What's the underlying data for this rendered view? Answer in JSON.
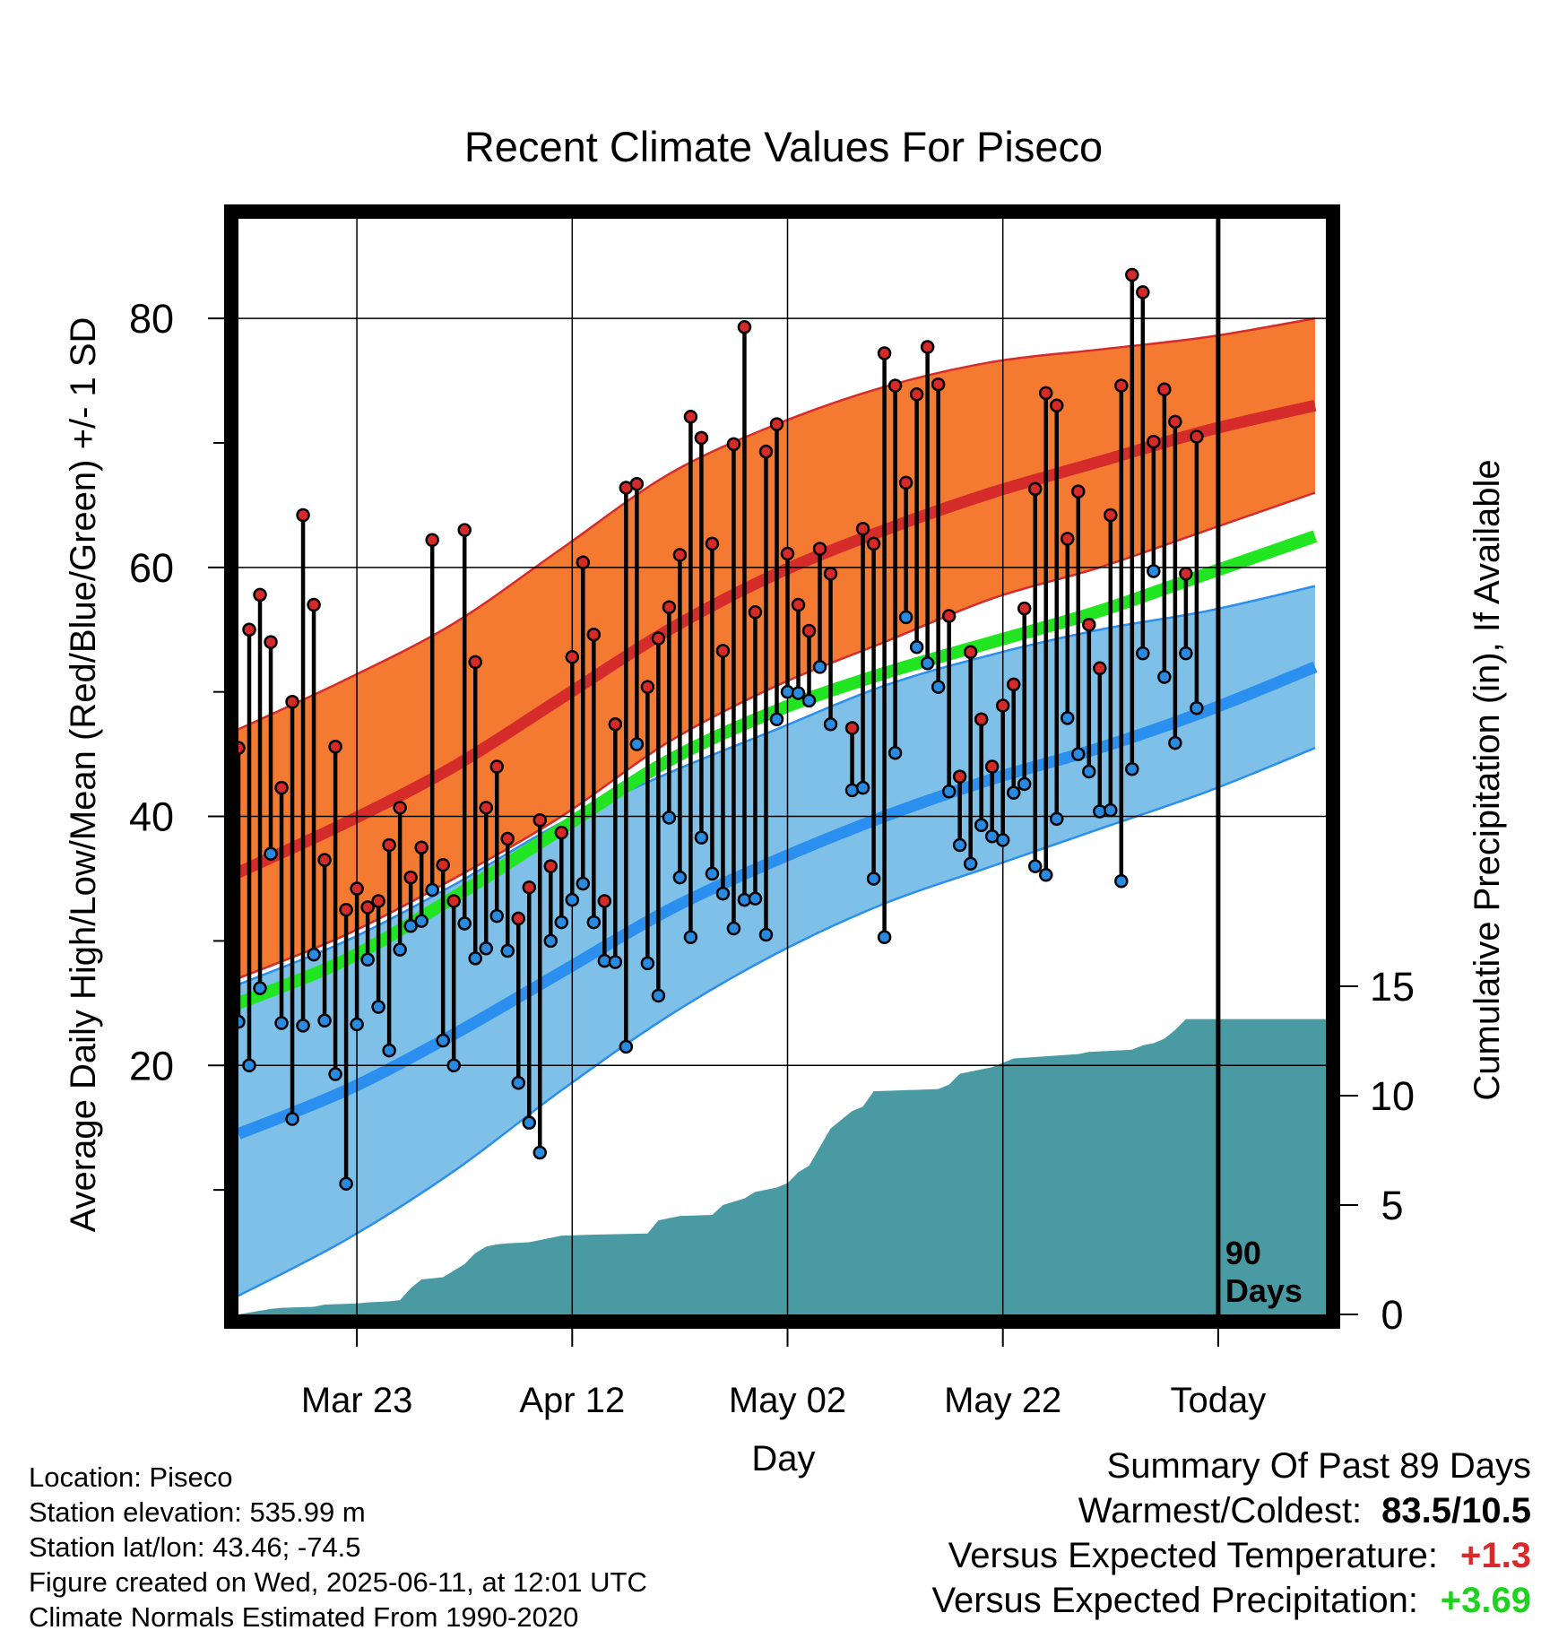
{
  "chart_data": {
    "type": "line",
    "title": "Recent Climate Values For Piseco",
    "xlabel": "Day",
    "ylabel": "Average Daily High/Low/Mean (Red/Blue/Green) +/- 1 SD",
    "y2label": "Cumulative Precipitation (in), If Available",
    "ylim": [
      0,
      88
    ],
    "y2lim": [
      0,
      15
    ],
    "yticks": [
      "20",
      "40",
      "60",
      "80"
    ],
    "y2ticks": [
      "0",
      "5",
      "10",
      "15"
    ],
    "xlim": [
      "2025-03-12",
      "2025-06-21"
    ],
    "xticks": [
      "Mar 23",
      "Apr 12",
      "May 02",
      "May 22",
      "Today"
    ],
    "xtick_dates": [
      "2025-03-23",
      "2025-04-12",
      "2025-05-02",
      "2025-05-22",
      "2025-06-11"
    ],
    "today_marker": {
      "date": "2025-06-11",
      "label_line1": "90",
      "label_line2": "Days"
    },
    "grid": true,
    "colors": {
      "high_band": "#f47a32",
      "high_line": "#d62b2b",
      "low_band": "#7fc0e8",
      "low_line": "#2a8fee",
      "mean_line": "#22e522",
      "precip": "#4a9aa3",
      "high_point": "#d42a2a",
      "low_point": "#2a8ae0"
    },
    "normals": {
      "dates": [
        "2025-03-12",
        "2025-03-22",
        "2025-04-01",
        "2025-04-11",
        "2025-04-21",
        "2025-05-01",
        "2025-05-11",
        "2025-05-21",
        "2025-05-31",
        "2025-06-10",
        "2025-06-20"
      ],
      "high_mean": [
        35.5,
        39.5,
        44.0,
        49.5,
        55.0,
        59.5,
        63.0,
        66.0,
        68.5,
        71.0,
        73.0
      ],
      "high_upper": [
        47.0,
        51.0,
        55.5,
        61.5,
        67.5,
        71.5,
        74.5,
        76.5,
        77.5,
        78.5,
        80.0
      ],
      "high_lower": [
        27.0,
        30.5,
        35.0,
        40.0,
        46.0,
        50.5,
        54.0,
        57.5,
        60.0,
        63.0,
        66.0
      ],
      "low_mean": [
        14.5,
        18.0,
        22.5,
        27.5,
        32.5,
        36.5,
        40.0,
        43.0,
        45.5,
        48.5,
        52.0
      ],
      "low_upper": [
        26.5,
        30.0,
        34.5,
        39.5,
        43.5,
        47.0,
        50.5,
        53.0,
        55.0,
        56.5,
        58.5
      ],
      "low_lower": [
        1.5,
        6.0,
        11.5,
        18.0,
        24.0,
        29.0,
        33.0,
        36.0,
        39.0,
        42.0,
        45.5
      ],
      "daily_mean": [
        25.0,
        28.5,
        33.5,
        39.0,
        44.5,
        48.5,
        51.5,
        54.0,
        56.5,
        59.5,
        62.5
      ]
    },
    "observations": {
      "dates": [
        "2025-03-12",
        "2025-03-13",
        "2025-03-14",
        "2025-03-15",
        "2025-03-16",
        "2025-03-17",
        "2025-03-18",
        "2025-03-19",
        "2025-03-20",
        "2025-03-21",
        "2025-03-22",
        "2025-03-23",
        "2025-03-24",
        "2025-03-25",
        "2025-03-26",
        "2025-03-27",
        "2025-03-28",
        "2025-03-29",
        "2025-03-30",
        "2025-03-31",
        "2025-04-01",
        "2025-04-02",
        "2025-04-03",
        "2025-04-04",
        "2025-04-05",
        "2025-04-06",
        "2025-04-07",
        "2025-04-08",
        "2025-04-09",
        "2025-04-10",
        "2025-04-11",
        "2025-04-12",
        "2025-04-13",
        "2025-04-14",
        "2025-04-15",
        "2025-04-16",
        "2025-04-17",
        "2025-04-18",
        "2025-04-19",
        "2025-04-20",
        "2025-04-21",
        "2025-04-22",
        "2025-04-23",
        "2025-04-24",
        "2025-04-25",
        "2025-04-26",
        "2025-04-27",
        "2025-04-28",
        "2025-04-29",
        "2025-04-30",
        "2025-05-01",
        "2025-05-02",
        "2025-05-03",
        "2025-05-04",
        "2025-05-05",
        "2025-05-06",
        "2025-05-07",
        "2025-05-08",
        "2025-05-09",
        "2025-05-10",
        "2025-05-11",
        "2025-05-12",
        "2025-05-13",
        "2025-05-14",
        "2025-05-15",
        "2025-05-16",
        "2025-05-17",
        "2025-05-18",
        "2025-05-19",
        "2025-05-20",
        "2025-05-21",
        "2025-05-22",
        "2025-05-23",
        "2025-05-24",
        "2025-05-25",
        "2025-05-26",
        "2025-05-27",
        "2025-05-28",
        "2025-05-29",
        "2025-05-30",
        "2025-05-31",
        "2025-06-01",
        "2025-06-02",
        "2025-06-03",
        "2025-06-04",
        "2025-06-05",
        "2025-06-06",
        "2025-06-07",
        "2025-06-08",
        "2025-06-09"
      ],
      "high": [
        45.5,
        55.0,
        57.8,
        54.0,
        42.3,
        49.2,
        64.2,
        57.0,
        36.5,
        45.6,
        32.5,
        34.2,
        32.7,
        33.2,
        37.7,
        40.7,
        35.1,
        37.5,
        62.2,
        36.1,
        33.2,
        63.0,
        52.4,
        40.7,
        44.0,
        38.2,
        31.8,
        34.3,
        39.7,
        36.0,
        38.7,
        52.8,
        60.4,
        54.6,
        33.2,
        47.4,
        66.4,
        66.7,
        50.4,
        54.3,
        56.8,
        61.0,
        72.1,
        70.4,
        61.9,
        53.3,
        69.9,
        79.3,
        56.4,
        69.3,
        71.5,
        61.1,
        57.0,
        54.9,
        61.5,
        59.5,
        null,
        47.1,
        63.1,
        61.9,
        77.2,
        74.6,
        66.8,
        73.9,
        77.7,
        74.7,
        56.1,
        43.2,
        53.2,
        47.8,
        44.0,
        48.9,
        50.6,
        56.7,
        66.3,
        74.0,
        73.0,
        62.3,
        66.1,
        55.4,
        51.9,
        64.2,
        74.6,
        83.5,
        82.1,
        70.1,
        74.3,
        71.7,
        59.5,
        70.5
      ],
      "low": [
        23.5,
        20.0,
        26.2,
        37.0,
        23.4,
        15.7,
        23.2,
        28.9,
        23.6,
        19.3,
        10.5,
        23.3,
        28.5,
        24.7,
        21.2,
        29.3,
        31.2,
        31.6,
        34.1,
        22.0,
        20.0,
        31.4,
        28.6,
        29.4,
        32.0,
        29.2,
        18.6,
        15.4,
        13.0,
        30.0,
        31.5,
        33.3,
        34.6,
        31.5,
        28.4,
        28.3,
        21.5,
        45.8,
        28.2,
        25.6,
        39.9,
        35.1,
        30.3,
        38.3,
        35.4,
        33.8,
        31.0,
        33.3,
        33.4,
        30.5,
        47.8,
        50.0,
        49.9,
        49.3,
        52.0,
        47.4,
        null,
        42.1,
        42.3,
        35.0,
        30.3,
        45.1,
        56.0,
        53.6,
        52.3,
        50.4,
        42.0,
        37.7,
        36.2,
        39.3,
        38.4,
        38.1,
        41.9,
        42.6,
        36.0,
        35.3,
        39.8,
        47.9,
        45.0,
        43.6,
        40.4,
        40.5,
        34.8,
        43.8,
        53.1,
        59.7,
        51.2,
        45.9,
        53.1,
        48.7
      ]
    },
    "precip_cumulative": {
      "dates": [
        "2025-03-12",
        "2025-03-15",
        "2025-03-16",
        "2025-03-19",
        "2025-03-20",
        "2025-03-23",
        "2025-03-24",
        "2025-03-26",
        "2025-03-27",
        "2025-03-28",
        "2025-03-29",
        "2025-03-31",
        "2025-04-01",
        "2025-04-02",
        "2025-04-03",
        "2025-04-04",
        "2025-04-05",
        "2025-04-06",
        "2025-04-08",
        "2025-04-10",
        "2025-04-11",
        "2025-04-14",
        "2025-04-19",
        "2025-04-20",
        "2025-04-21",
        "2025-04-22",
        "2025-04-25",
        "2025-04-26",
        "2025-04-28",
        "2025-04-29",
        "2025-05-01",
        "2025-05-02",
        "2025-05-03",
        "2025-05-04",
        "2025-05-06",
        "2025-05-08",
        "2025-05-09",
        "2025-05-10",
        "2025-05-16",
        "2025-05-17",
        "2025-05-18",
        "2025-05-21",
        "2025-05-22",
        "2025-05-23",
        "2025-05-26",
        "2025-05-29",
        "2025-05-30",
        "2025-06-03",
        "2025-06-04",
        "2025-06-05",
        "2025-06-06",
        "2025-06-07",
        "2025-06-08",
        "2025-06-21"
      ],
      "values": [
        0.0,
        0.25,
        0.3,
        0.35,
        0.45,
        0.5,
        0.55,
        0.6,
        0.65,
        1.2,
        1.6,
        1.7,
        2.0,
        2.3,
        2.8,
        3.1,
        3.2,
        3.25,
        3.3,
        3.5,
        3.6,
        3.65,
        3.7,
        4.3,
        4.4,
        4.5,
        4.55,
        5.0,
        5.3,
        5.6,
        5.8,
        6.0,
        6.5,
        6.8,
        8.5,
        9.3,
        9.5,
        10.2,
        10.3,
        10.5,
        11.0,
        11.3,
        11.5,
        11.7,
        11.8,
        11.9,
        12.0,
        12.1,
        12.3,
        12.4,
        12.6,
        13.0,
        13.5,
        13.5
      ]
    }
  },
  "location_info": [
    "Location: Piseco",
    "Station elevation: 535.99 m",
    "Station lat/lon: 43.46; -74.5",
    "Figure created on Wed, 2025-06-11, at 12:01 UTC",
    "Climate Normals Estimated From 1990-2020"
  ],
  "summary": {
    "heading": "Summary Of Past 89 Days",
    "warmest_coldest_label": "Warmest/Coldest:",
    "warmest_coldest_value": "83.5/10.5",
    "temp_label": "Versus Expected Temperature:",
    "temp_value": "+1.3",
    "precip_label": "Versus Expected Precipitation:",
    "precip_value": "+3.69"
  }
}
